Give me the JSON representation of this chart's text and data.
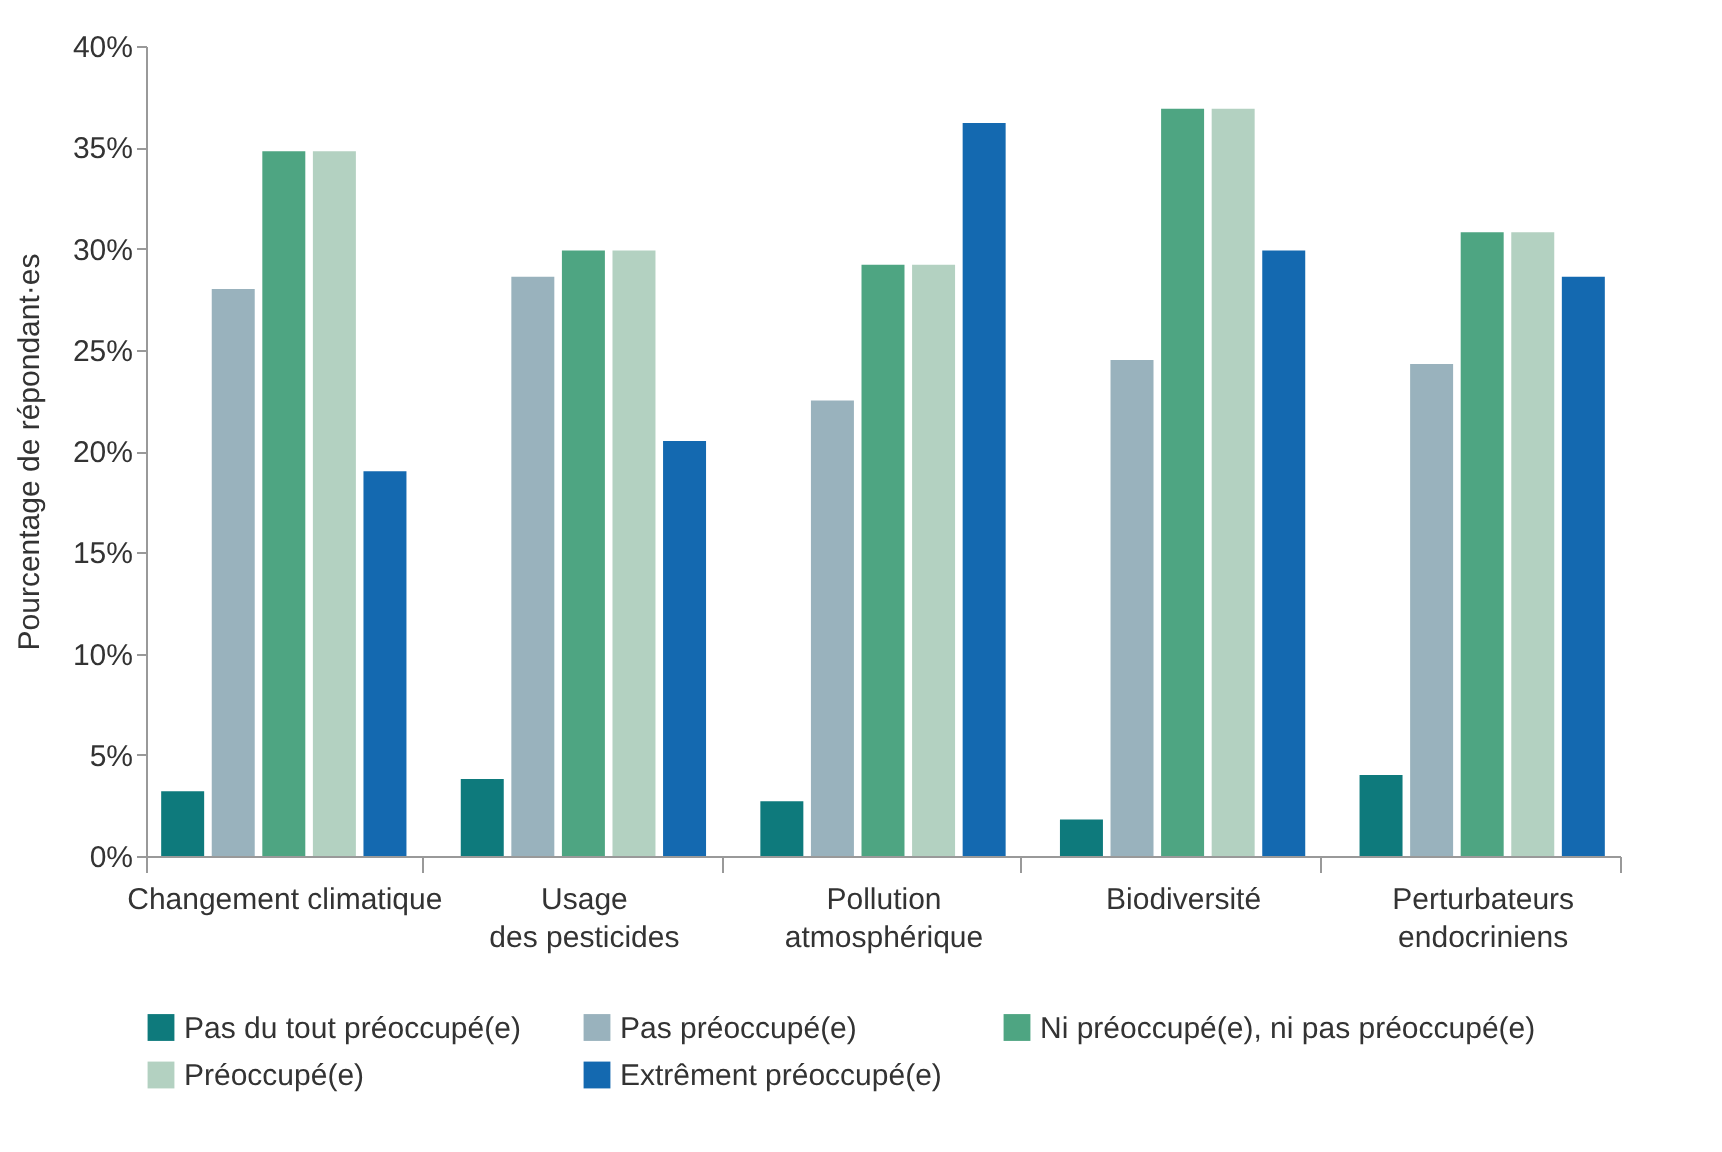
{
  "chart_data": {
    "type": "bar",
    "ylabel": "Pourcentage de répondant·es",
    "categories": [
      "Changement climatique",
      "Usage\ndes pesticides",
      "Pollution\natmosphérique",
      "Biodiversité",
      "Perturbateurs\nendocriniens"
    ],
    "series": [
      {
        "name": "Pas du tout préoccupé(e)",
        "color": "#0e7a7c",
        "values": [
          3.2,
          3.8,
          2.7,
          1.8,
          4.0
        ]
      },
      {
        "name": "Pas préoccupé(e)",
        "color": "#99b2bd",
        "values": [
          28.0,
          28.6,
          22.5,
          24.5,
          24.3
        ]
      },
      {
        "name": "Ni préoccupé(e), ni pas préoccupé(e)",
        "color": "#4ea582",
        "values": [
          34.8,
          29.9,
          29.2,
          36.9,
          30.8
        ]
      },
      {
        "name": "Préoccupé(e)",
        "color": "#b3d1c1",
        "values": [
          34.8,
          29.9,
          29.2,
          36.9,
          30.8
        ]
      },
      {
        "name": "Extrêment préoccupé(e)",
        "color": "#1469b0",
        "values": [
          19.0,
          20.5,
          36.2,
          29.9,
          28.6
        ]
      }
    ],
    "ylim": [
      0,
      40
    ],
    "yticks": [
      {
        "value": 0,
        "label": "0%"
      },
      {
        "value": 5,
        "label": "5%"
      },
      {
        "value": 10,
        "label": "10%"
      },
      {
        "value": 15,
        "label": "15%"
      },
      {
        "value": 20,
        "label": "20%"
      },
      {
        "value": 25,
        "label": "25%"
      },
      {
        "value": 30,
        "label": "30%"
      },
      {
        "value": 35,
        "label": "35%"
      },
      {
        "value": 40,
        "label": "40%"
      }
    ],
    "grid": false,
    "legend": "bottom"
  }
}
